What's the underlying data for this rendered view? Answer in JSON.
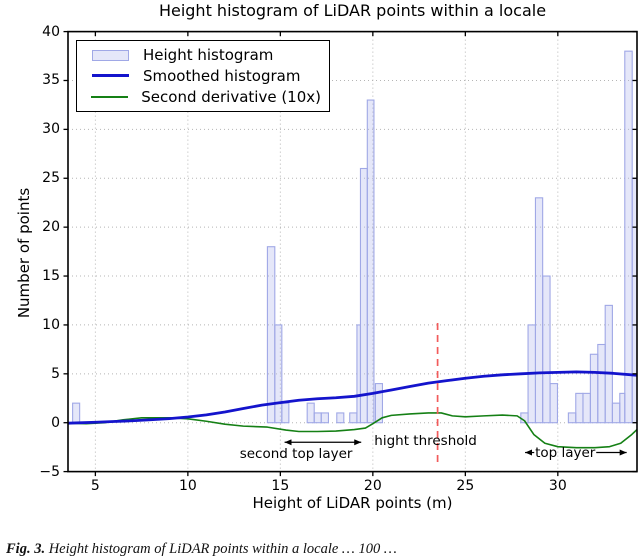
{
  "title": "Height histogram of LiDAR points within a locale",
  "caption": {
    "prefix": "Fig. 3.",
    "text": "Height histogram of LiDAR points within a locale … 100 …"
  },
  "colors": {
    "bar_fill": "rgba(173,181,236,0.32)",
    "bar_edge": "#a0a8e6",
    "smoothed": "#1414cc",
    "derivative": "#158015",
    "threshold": "#f25b5b",
    "grid": "#b5b5b5",
    "axis": "#000000",
    "background": "#ffffff"
  },
  "chart_data": {
    "type": "bar",
    "title": "Height histogram of LiDAR points within a locale",
    "xlabel": "Height of LiDAR points (m)",
    "ylabel": "Number of points",
    "xlim": [
      3.52,
      34.28
    ],
    "ylim": [
      -5,
      40
    ],
    "xticks": [
      5,
      10,
      15,
      20,
      25,
      30
    ],
    "yticks": [
      -5,
      0,
      5,
      10,
      15,
      20,
      25,
      30,
      35,
      40
    ],
    "grid": true,
    "legend": {
      "position": "upper left",
      "entries": [
        {
          "label": "Height histogram",
          "type": "patch"
        },
        {
          "label": "Smoothed histogram",
          "type": "line"
        },
        {
          "label": "Second derivative (10x)",
          "type": "line"
        }
      ]
    },
    "bars_comment": "each bar = [x_start_m, x_end_m, number_of_points]",
    "bars": [
      [
        3.77,
        4.15,
        2
      ],
      [
        14.3,
        14.7,
        18
      ],
      [
        14.7,
        15.08,
        10
      ],
      [
        15.08,
        15.46,
        2
      ],
      [
        16.45,
        16.83,
        2
      ],
      [
        16.83,
        17.21,
        1
      ],
      [
        17.21,
        17.6,
        1
      ],
      [
        18.05,
        18.43,
        1
      ],
      [
        18.75,
        19.14,
        1
      ],
      [
        19.14,
        19.33,
        10
      ],
      [
        19.33,
        19.7,
        26
      ],
      [
        19.7,
        20.06,
        33
      ],
      [
        20.14,
        20.52,
        4
      ],
      [
        28.0,
        28.39,
        1
      ],
      [
        28.39,
        28.79,
        10
      ],
      [
        28.79,
        29.18,
        23
      ],
      [
        29.18,
        29.58,
        15
      ],
      [
        29.58,
        29.98,
        4
      ],
      [
        30.57,
        30.97,
        1
      ],
      [
        30.97,
        31.36,
        3
      ],
      [
        31.36,
        31.76,
        3
      ],
      [
        31.76,
        32.16,
        7
      ],
      [
        32.16,
        32.56,
        8
      ],
      [
        32.56,
        32.95,
        12
      ],
      [
        32.95,
        33.35,
        2
      ],
      [
        33.35,
        33.62,
        3
      ],
      [
        33.62,
        34.02,
        38
      ],
      [
        34.02,
        34.42,
        25
      ]
    ],
    "series": [
      {
        "name": "Smoothed histogram",
        "points": [
          [
            3.5,
            -0.05
          ],
          [
            5,
            0.05
          ],
          [
            6,
            0.12
          ],
          [
            7,
            0.2
          ],
          [
            8,
            0.3
          ],
          [
            9,
            0.42
          ],
          [
            10,
            0.58
          ],
          [
            11,
            0.8
          ],
          [
            12,
            1.1
          ],
          [
            13,
            1.45
          ],
          [
            14,
            1.8
          ],
          [
            15,
            2.05
          ],
          [
            16,
            2.3
          ],
          [
            17,
            2.45
          ],
          [
            18,
            2.55
          ],
          [
            19,
            2.7
          ],
          [
            20,
            3.0
          ],
          [
            21,
            3.35
          ],
          [
            22,
            3.7
          ],
          [
            23,
            4.05
          ],
          [
            24,
            4.3
          ],
          [
            25,
            4.55
          ],
          [
            26,
            4.75
          ],
          [
            27,
            4.9
          ],
          [
            28,
            5.0
          ],
          [
            29,
            5.1
          ],
          [
            30,
            5.15
          ],
          [
            31,
            5.2
          ],
          [
            32,
            5.15
          ],
          [
            33,
            5.05
          ],
          [
            34.28,
            4.85
          ]
        ]
      },
      {
        "name": "Second derivative (10x)",
        "points": [
          [
            3.52,
            -0.05
          ],
          [
            4.5,
            -0.1
          ],
          [
            5.5,
            0.0
          ],
          [
            6.5,
            0.3
          ],
          [
            7.5,
            0.5
          ],
          [
            9,
            0.5
          ],
          [
            10,
            0.4
          ],
          [
            11,
            0.15
          ],
          [
            12,
            -0.15
          ],
          [
            13,
            -0.35
          ],
          [
            14.3,
            -0.45
          ],
          [
            15.3,
            -0.75
          ],
          [
            16,
            -0.9
          ],
          [
            17,
            -0.9
          ],
          [
            18,
            -0.85
          ],
          [
            19,
            -0.7
          ],
          [
            19.6,
            -0.55
          ],
          [
            20,
            -0.1
          ],
          [
            20.5,
            0.5
          ],
          [
            21,
            0.75
          ],
          [
            22,
            0.9
          ],
          [
            23,
            1.0
          ],
          [
            23.7,
            1.0
          ],
          [
            24.3,
            0.7
          ],
          [
            25,
            0.6
          ],
          [
            26,
            0.7
          ],
          [
            27,
            0.78
          ],
          [
            27.8,
            0.7
          ],
          [
            28.2,
            0.2
          ],
          [
            28.7,
            -1.2
          ],
          [
            29.3,
            -2.1
          ],
          [
            30,
            -2.45
          ],
          [
            31,
            -2.55
          ],
          [
            32,
            -2.55
          ],
          [
            32.8,
            -2.45
          ],
          [
            33.4,
            -2.1
          ],
          [
            34,
            -1.2
          ],
          [
            34.28,
            -0.7
          ]
        ]
      }
    ],
    "threshold_line": {
      "x": 23.5,
      "y_bottom": -4.2,
      "y_top": 10.2,
      "style": "dashed"
    },
    "annotations": [
      {
        "text": "second top layer",
        "x": 15.85,
        "y": -3.2,
        "arrow": {
          "x1": 14.85,
          "x2": 19.75,
          "y": -2.0,
          "style": "<->"
        }
      },
      {
        "text": "hight threshold",
        "x": 22.85,
        "y": -1.85
      },
      {
        "text": "top layer",
        "x": 30.4,
        "y": -3.05,
        "arrow": {
          "x1": 27.85,
          "x2": 34.1,
          "y": -3.05,
          "style": "<->",
          "split_by_text": true
        }
      }
    ]
  }
}
